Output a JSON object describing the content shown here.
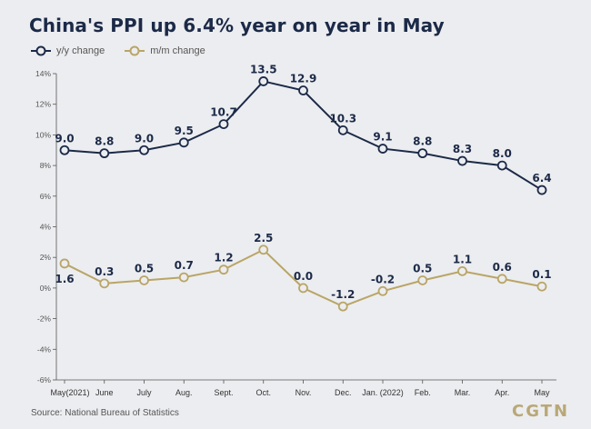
{
  "title": "China's PPI up 6.4% year on year in May",
  "source": "Source: National Bureau of Statistics",
  "logo": "CGTN",
  "colors": {
    "yy": "#1c2a48",
    "mm": "#b9a566",
    "background": "#ecedf0",
    "axis": "#555555"
  },
  "chart_data": {
    "type": "line",
    "title": "China's PPI up 6.4% year on year in May",
    "categories": [
      "May(2021)",
      "June",
      "July",
      "Aug.",
      "Sept.",
      "Oct.",
      "Nov.",
      "Dec.",
      "Jan. (2022)",
      "Feb.",
      "Mar.",
      "Apr.",
      "May"
    ],
    "series": [
      {
        "name": "y/y change",
        "values": [
          9.0,
          8.8,
          9.0,
          9.5,
          10.7,
          13.5,
          12.9,
          10.3,
          9.1,
          8.8,
          8.3,
          8.0,
          6.4
        ],
        "labels": [
          "9.0",
          "8.8",
          "9.0",
          "9.5",
          "10.7",
          "13.5",
          "12.9",
          "10.3",
          "9.1",
          "8.8",
          "8.3",
          "8.0",
          "6.4"
        ]
      },
      {
        "name": "m/m change",
        "values": [
          1.6,
          0.3,
          0.5,
          0.7,
          1.2,
          2.5,
          0.0,
          -1.2,
          -0.2,
          0.5,
          1.1,
          0.6,
          0.1
        ],
        "labels": [
          "1.6",
          "0.3",
          "0.5",
          "0.7",
          "1.2",
          "2.5",
          "0.0",
          "-1.2",
          "-0.2",
          "0.5",
          "1.1",
          "0.6",
          "0.1"
        ]
      }
    ],
    "ylim": [
      -6,
      14
    ],
    "yticks": [
      14,
      12,
      10,
      8,
      6,
      4,
      2,
      0,
      -2,
      -4,
      -6
    ],
    "ytick_labels": [
      "14%",
      "12%",
      "10%",
      "8%",
      "6%",
      "4%",
      "2%",
      "0%",
      "-2%",
      "-4%",
      "-6%"
    ],
    "xlabel": "",
    "ylabel": "",
    "grid": false,
    "legend_position": "top-left"
  }
}
